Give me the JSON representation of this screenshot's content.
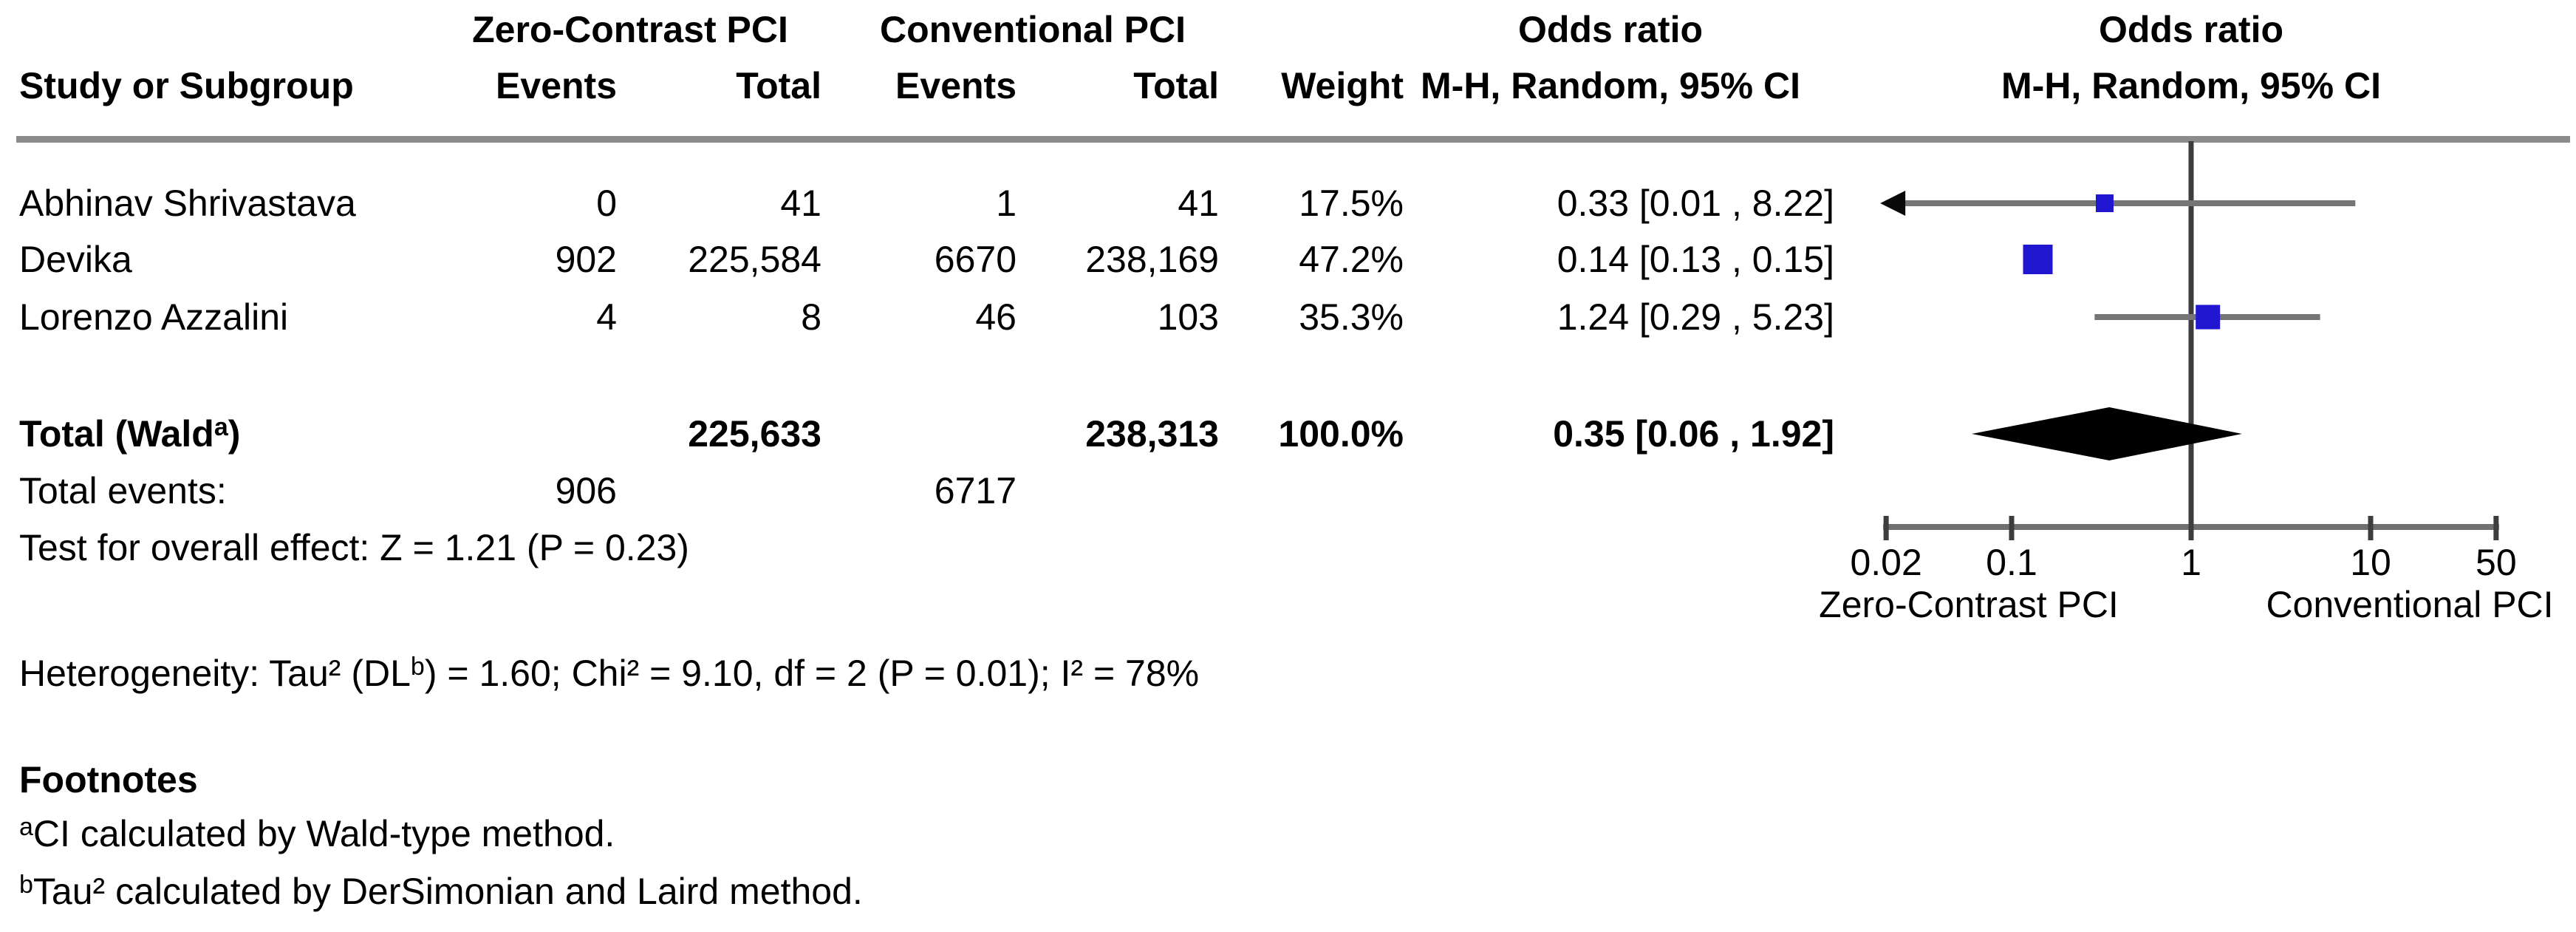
{
  "header": {
    "group1": "Zero-Contrast PCI",
    "group2": "Conventional PCI",
    "or_title_text_col": "Odds ratio",
    "or_title_plot_col": "Odds ratio",
    "study_col": "Study or Subgroup",
    "events1_col": "Events",
    "total1_col": "Total",
    "events2_col": "Events",
    "total2_col": "Total",
    "weight_col": "Weight",
    "mh_text_col": "M-H, Random, 95% CI",
    "mh_plot_col": "M-H, Random, 95% CI"
  },
  "rows": [
    {
      "name": "Abhinav Shrivastava",
      "events1": "0",
      "total1": "41",
      "events2": "1",
      "total2": "41",
      "weight": "17.5%",
      "or_ci": "0.33 [0.01 , 8.22]"
    },
    {
      "name": "Devika",
      "events1": "902",
      "total1": "225,584",
      "events2": "6670",
      "total2": "238,169",
      "weight": "47.2%",
      "or_ci": "0.14 [0.13 , 0.15]"
    },
    {
      "name": "Lorenzo Azzalini",
      "events1": "4",
      "total1": "8",
      "events2": "46",
      "total2": "103",
      "weight": "35.3%",
      "or_ci": "1.24 [0.29 , 5.23]"
    }
  ],
  "total_row": {
    "label_pre": "Total (Wald",
    "label_sup": "a",
    "label_post": ")",
    "total1": "225,633",
    "total2": "238,313",
    "weight": "100.0%",
    "or_ci": "0.35 [0.06 , 1.92]"
  },
  "total_events": {
    "label": "Total events:",
    "events1": "906",
    "events2": "6717"
  },
  "overall_effect": "Test for overall effect: Z = 1.21 (P = 0.23)",
  "heterogeneity": {
    "pre": "Heterogeneity: Tau² (DL",
    "sup": "b",
    "post": ") = 1.60; Chi² = 9.10, df = 2 (P = 0.01); I² = 78%"
  },
  "footnotes": {
    "title": "Footnotes",
    "a_sup": "a",
    "a_text": "CI calculated by Wald-type method.",
    "b_sup": "b",
    "b_text": "Tau² calculated by DerSimonian and Laird method."
  },
  "axis_captions": {
    "left": "Zero-Contrast PCI",
    "right": "Conventional PCI"
  },
  "colors": {
    "marker_blue": "#2217d0",
    "ci_line": "#757575",
    "axis_line": "#6f6f6f",
    "null_line": "#3d3d3d",
    "tick": "#3d3d3d",
    "separator": "#8c8c8c",
    "diamond": "#000000",
    "arrow": "#0a0a0a"
  },
  "chart_data": {
    "type": "forest",
    "title": "Odds ratio",
    "method": "M-H, Random, 95% CI",
    "null_value": 1,
    "axis": {
      "scale": "log",
      "min": 0.02,
      "max": 50,
      "tick_values": [
        0.02,
        0.1,
        1,
        10,
        50
      ],
      "tick_labels": [
        "0.02",
        "0.1",
        "1",
        "10",
        "50"
      ],
      "left_caption": "Zero-Contrast PCI",
      "right_caption": "Conventional PCI"
    },
    "studies": [
      {
        "name": "Abhinav Shrivastava",
        "or": 0.33,
        "ci_low": 0.01,
        "ci_high": 8.22,
        "weight_pct": 17.5
      },
      {
        "name": "Devika",
        "or": 0.14,
        "ci_low": 0.13,
        "ci_high": 0.15,
        "weight_pct": 47.2
      },
      {
        "name": "Lorenzo Azzalini",
        "or": 1.24,
        "ci_low": 0.29,
        "ci_high": 5.23,
        "weight_pct": 35.3
      }
    ],
    "total": {
      "label": "Total (Wald a)",
      "or": 0.35,
      "ci_low": 0.06,
      "ci_high": 1.92,
      "weight_pct": 100.0,
      "total_events_group1": 906,
      "total_events_group2": 6717,
      "total_n_group1": 225633,
      "total_n_group2": 238313,
      "z": 1.21,
      "p": 0.23,
      "tau2": 1.6,
      "chi2": 9.1,
      "df": 2,
      "het_p": 0.01,
      "i2_pct": 78
    }
  }
}
